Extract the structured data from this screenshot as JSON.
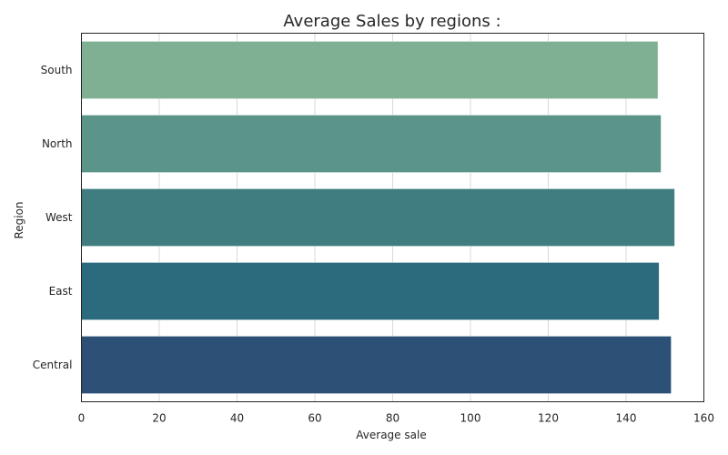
{
  "chart_data": {
    "type": "bar",
    "orientation": "horizontal",
    "title": "Average Sales by regions :",
    "xlabel": "Average sale",
    "ylabel": "Region",
    "xlim": [
      0,
      160
    ],
    "xticks": [
      "0",
      "20",
      "40",
      "60",
      "80",
      "100",
      "120",
      "140",
      "160"
    ],
    "categories": [
      "South",
      "North",
      "West",
      "East",
      "Central"
    ],
    "values": [
      148.2,
      149.0,
      152.5,
      148.5,
      151.6
    ],
    "colors": [
      "#7fb094",
      "#5b958a",
      "#3f7d80",
      "#2c6a7e",
      "#2d5076"
    ],
    "grid": true
  }
}
